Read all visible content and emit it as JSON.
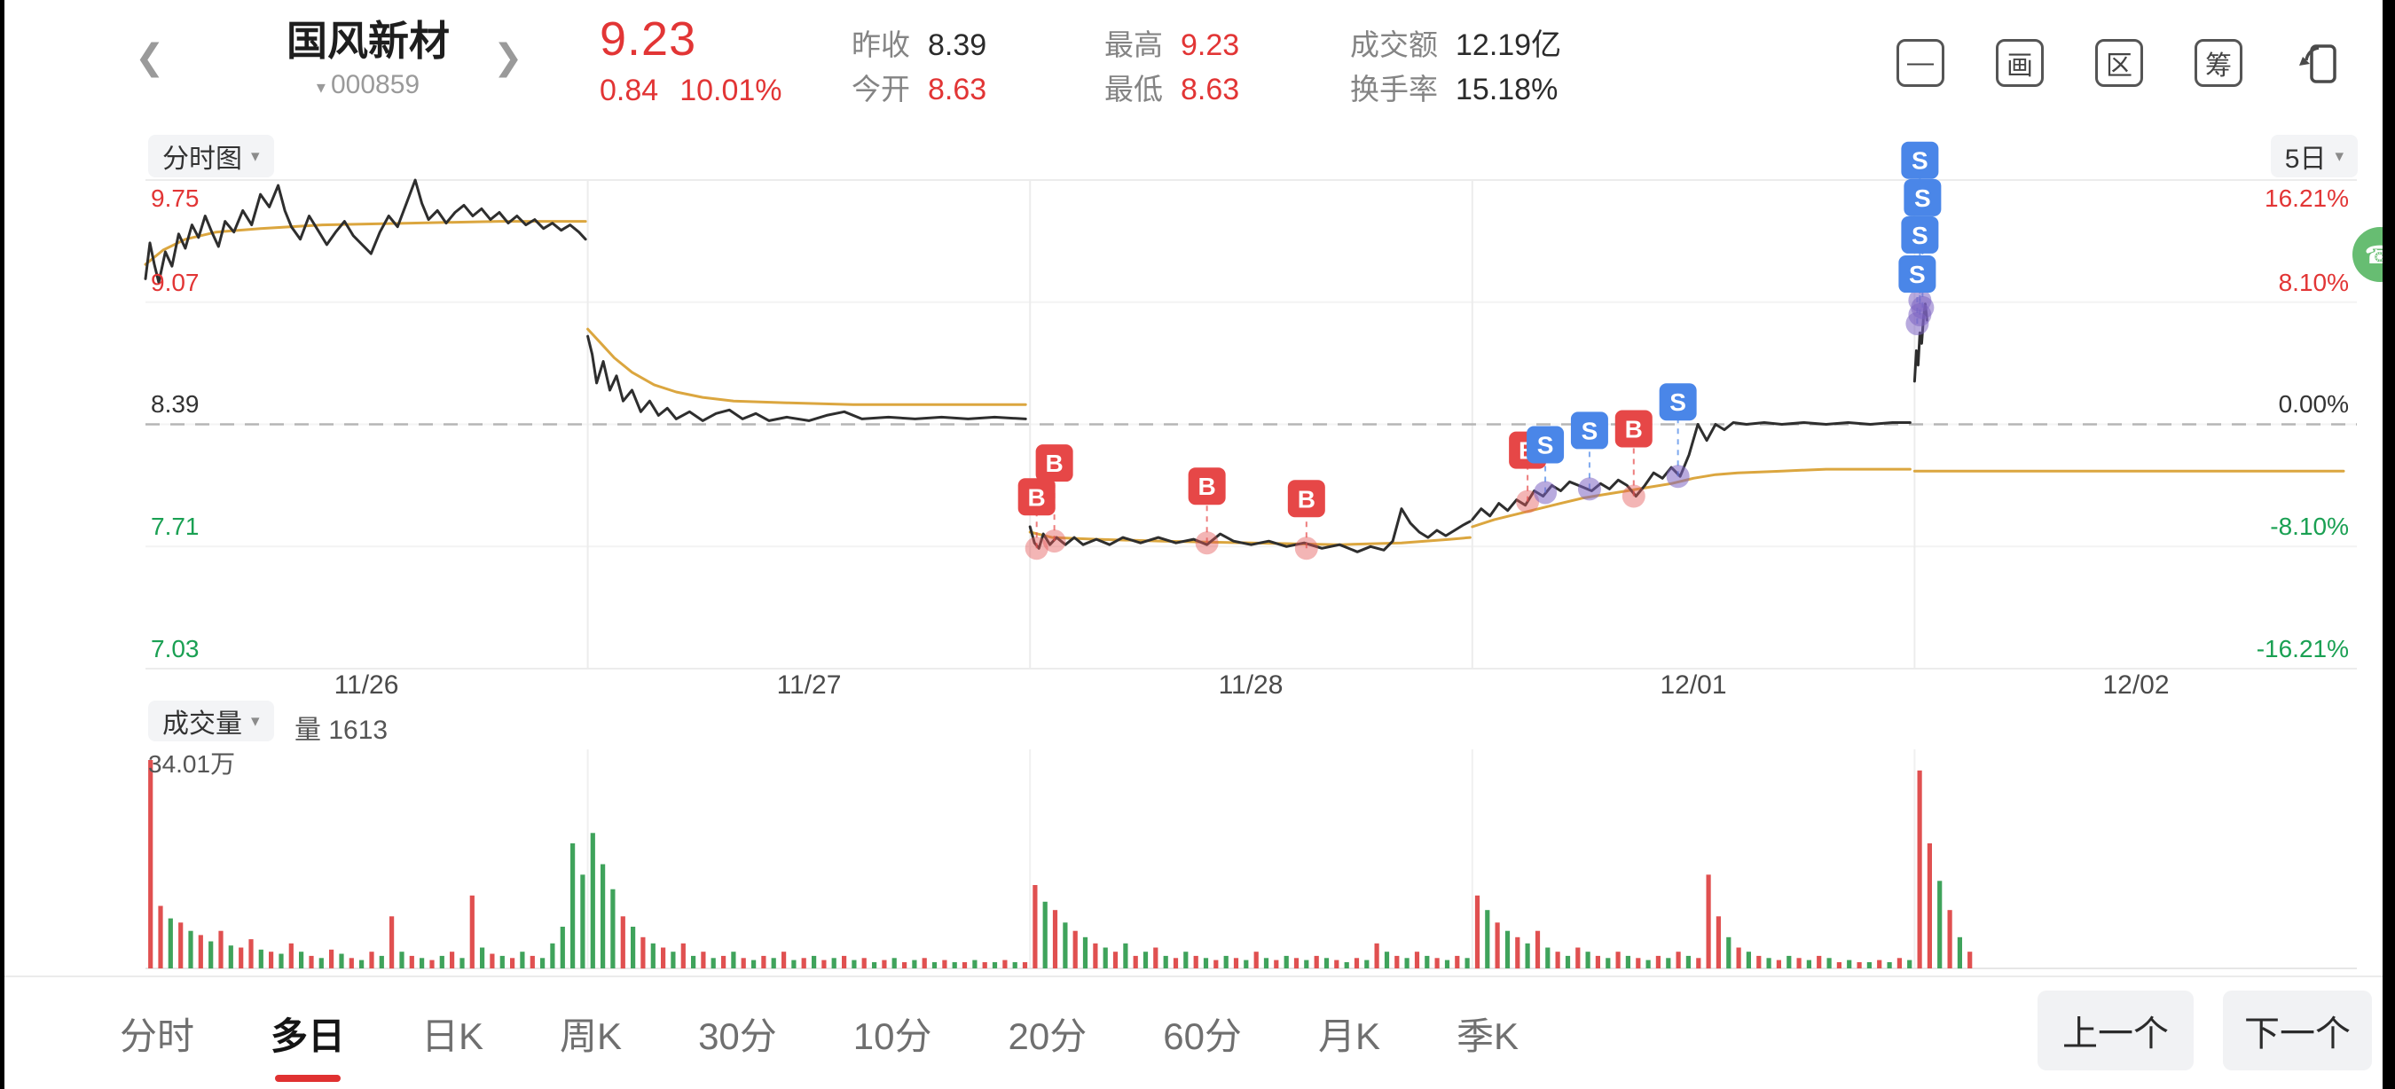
{
  "colors": {
    "up": "#e23535",
    "down": "#1aa053",
    "accent": "#e03131"
  },
  "header": {
    "stock_name": "国风新材",
    "stock_code": "000859",
    "price": "9.23",
    "change_amount": "0.84",
    "change_pct": "10.01%",
    "stats": [
      {
        "label": "昨收",
        "value": "8.39",
        "color": "#2b2b2b"
      },
      {
        "label": "今开",
        "value": "8.63",
        "color": "#e23535"
      },
      {
        "label": "最高",
        "value": "9.23",
        "color": "#e23535"
      },
      {
        "label": "最低",
        "value": "8.63",
        "color": "#e23535"
      },
      {
        "label": "成交额",
        "value": "12.19亿",
        "color": "#2b2b2b"
      },
      {
        "label": "换手率",
        "value": "15.18%",
        "color": "#2b2b2b"
      }
    ],
    "icons": [
      {
        "name": "minus-icon",
        "glyph": "—"
      },
      {
        "name": "draw-tool-icon",
        "glyph": "画"
      },
      {
        "name": "region-stat-icon",
        "glyph": "区"
      },
      {
        "name": "chip-distribution-icon",
        "glyph": "筹"
      },
      {
        "name": "rotate-screen-icon",
        "glyph": ""
      }
    ]
  },
  "chart_toolbar": {
    "chart_type": "分时图",
    "range": "5日"
  },
  "volume_toolbar": {
    "indicator": "成交量",
    "vol_label": "量",
    "vol_value": "1613",
    "max_label": "34.01万"
  },
  "tabs": {
    "items": [
      {
        "label": "分时",
        "active": false
      },
      {
        "label": "多日",
        "active": true
      },
      {
        "label": "日K",
        "active": false
      },
      {
        "label": "周K",
        "active": false
      },
      {
        "label": "30分",
        "active": false
      },
      {
        "label": "10分",
        "active": false
      },
      {
        "label": "20分",
        "active": false
      },
      {
        "label": "60分",
        "active": false
      },
      {
        "label": "月K",
        "active": false
      },
      {
        "label": "季K",
        "active": false
      }
    ],
    "prev": "上一个",
    "next": "下一个"
  },
  "chart_data": {
    "type": "line",
    "title": "5日分时图",
    "ylim": [
      7.03,
      9.75
    ],
    "prev_close": 8.39,
    "price_levels": [
      {
        "price": 9.75,
        "text": "9.75",
        "color": "#e23535"
      },
      {
        "price": 9.07,
        "text": "9.07",
        "color": "#e23535"
      },
      {
        "price": 8.39,
        "text": "8.39",
        "color": "#333333"
      },
      {
        "price": 7.71,
        "text": "7.71",
        "color": "#1aa053"
      },
      {
        "price": 7.03,
        "text": "7.03",
        "color": "#1aa053"
      }
    ],
    "pct_levels": [
      {
        "text": "16.21%",
        "color": "#e23535"
      },
      {
        "text": "8.10%",
        "color": "#e23535"
      },
      {
        "text": "0.00%",
        "color": "#333333"
      },
      {
        "text": "-8.10%",
        "color": "#1aa053"
      },
      {
        "text": "-16.21%",
        "color": "#1aa053"
      }
    ],
    "days": [
      "11/26",
      "11/27",
      "11/28",
      "12/01",
      "12/02"
    ],
    "colors": {
      "price_line": "#2e2e2e",
      "avg_line": "#dba63f",
      "vol_up": "#e05050",
      "vol_down": "#3fa35b",
      "buy": "#e64747",
      "sell": "#4a86e8",
      "grid": "#ececec",
      "dash": "#b5b5b5"
    },
    "price_segments": [
      [
        [
          0,
          9.2
        ],
        [
          0.01,
          9.4
        ],
        [
          0.02,
          9.28
        ],
        [
          0.03,
          9.18
        ],
        [
          0.045,
          9.35
        ],
        [
          0.06,
          9.27
        ],
        [
          0.075,
          9.45
        ],
        [
          0.09,
          9.37
        ],
        [
          0.105,
          9.5
        ],
        [
          0.12,
          9.43
        ],
        [
          0.135,
          9.55
        ],
        [
          0.15,
          9.46
        ],
        [
          0.165,
          9.38
        ],
        [
          0.18,
          9.52
        ],
        [
          0.2,
          9.46
        ],
        [
          0.22,
          9.58
        ],
        [
          0.24,
          9.5
        ],
        [
          0.26,
          9.67
        ],
        [
          0.28,
          9.6
        ],
        [
          0.3,
          9.72
        ],
        [
          0.315,
          9.58
        ],
        [
          0.33,
          9.49
        ],
        [
          0.35,
          9.42
        ],
        [
          0.37,
          9.55
        ],
        [
          0.39,
          9.47
        ],
        [
          0.41,
          9.39
        ],
        [
          0.43,
          9.46
        ],
        [
          0.45,
          9.52
        ],
        [
          0.47,
          9.44
        ],
        [
          0.49,
          9.39
        ],
        [
          0.51,
          9.34
        ],
        [
          0.53,
          9.46
        ],
        [
          0.55,
          9.55
        ],
        [
          0.57,
          9.49
        ],
        [
          0.59,
          9.62
        ],
        [
          0.61,
          9.75
        ],
        [
          0.625,
          9.62
        ],
        [
          0.64,
          9.53
        ],
        [
          0.66,
          9.58
        ],
        [
          0.68,
          9.51
        ],
        [
          0.7,
          9.57
        ],
        [
          0.72,
          9.61
        ],
        [
          0.74,
          9.55
        ],
        [
          0.76,
          9.59
        ],
        [
          0.78,
          9.53
        ],
        [
          0.8,
          9.57
        ],
        [
          0.82,
          9.51
        ],
        [
          0.84,
          9.55
        ],
        [
          0.86,
          9.5
        ],
        [
          0.88,
          9.53
        ],
        [
          0.9,
          9.48
        ],
        [
          0.92,
          9.51
        ],
        [
          0.94,
          9.47
        ],
        [
          0.96,
          9.5
        ],
        [
          0.98,
          9.46
        ],
        [
          0.995,
          9.42
        ]
      ],
      [
        [
          1.0,
          8.88
        ],
        [
          1.01,
          8.78
        ],
        [
          1.02,
          8.62
        ],
        [
          1.035,
          8.74
        ],
        [
          1.05,
          8.58
        ],
        [
          1.065,
          8.66
        ],
        [
          1.08,
          8.52
        ],
        [
          1.1,
          8.58
        ],
        [
          1.12,
          8.46
        ],
        [
          1.14,
          8.52
        ],
        [
          1.16,
          8.44
        ],
        [
          1.18,
          8.48
        ],
        [
          1.2,
          8.42
        ],
        [
          1.23,
          8.46
        ],
        [
          1.26,
          8.41
        ],
        [
          1.29,
          8.45
        ],
        [
          1.32,
          8.47
        ],
        [
          1.35,
          8.42
        ],
        [
          1.38,
          8.45
        ],
        [
          1.41,
          8.41
        ],
        [
          1.45,
          8.43
        ],
        [
          1.5,
          8.41
        ],
        [
          1.54,
          8.44
        ],
        [
          1.58,
          8.46
        ],
        [
          1.62,
          8.42
        ],
        [
          1.68,
          8.43
        ],
        [
          1.74,
          8.42
        ],
        [
          1.8,
          8.43
        ],
        [
          1.86,
          8.42
        ],
        [
          1.92,
          8.43
        ],
        [
          1.99,
          8.42
        ]
      ],
      [
        [
          2.0,
          7.82
        ],
        [
          2.01,
          7.73
        ],
        [
          2.02,
          7.7
        ],
        [
          2.03,
          7.78
        ],
        [
          2.045,
          7.72
        ],
        [
          2.06,
          7.76
        ],
        [
          2.08,
          7.72
        ],
        [
          2.1,
          7.76
        ],
        [
          2.12,
          7.72
        ],
        [
          2.15,
          7.75
        ],
        [
          2.18,
          7.72
        ],
        [
          2.21,
          7.76
        ],
        [
          2.25,
          7.73
        ],
        [
          2.29,
          7.76
        ],
        [
          2.33,
          7.73
        ],
        [
          2.37,
          7.75
        ],
        [
          2.4,
          7.72
        ],
        [
          2.43,
          7.78
        ],
        [
          2.46,
          7.74
        ],
        [
          2.5,
          7.72
        ],
        [
          2.54,
          7.74
        ],
        [
          2.58,
          7.71
        ],
        [
          2.62,
          7.73
        ],
        [
          2.66,
          7.7
        ],
        [
          2.7,
          7.72
        ],
        [
          2.74,
          7.68
        ],
        [
          2.77,
          7.71
        ],
        [
          2.8,
          7.69
        ],
        [
          2.82,
          7.74
        ],
        [
          2.84,
          7.92
        ],
        [
          2.86,
          7.84
        ],
        [
          2.88,
          7.79
        ],
        [
          2.9,
          7.76
        ],
        [
          2.92,
          7.8
        ],
        [
          2.94,
          7.77
        ],
        [
          2.96,
          7.8
        ],
        [
          2.98,
          7.83
        ],
        [
          2.995,
          7.85
        ]
      ],
      [
        [
          3.0,
          7.86
        ],
        [
          3.02,
          7.92
        ],
        [
          3.04,
          7.88
        ],
        [
          3.06,
          7.95
        ],
        [
          3.08,
          7.91
        ],
        [
          3.1,
          7.97
        ],
        [
          3.12,
          7.94
        ],
        [
          3.14,
          8.02
        ],
        [
          3.16,
          7.99
        ],
        [
          3.18,
          8.05
        ],
        [
          3.2,
          8.02
        ],
        [
          3.22,
          8.07
        ],
        [
          3.25,
          8.04
        ],
        [
          3.27,
          8.02
        ],
        [
          3.29,
          8.06
        ],
        [
          3.31,
          8.03
        ],
        [
          3.33,
          8.08
        ],
        [
          3.35,
          8.05
        ],
        [
          3.37,
          7.99
        ],
        [
          3.39,
          8.05
        ],
        [
          3.41,
          8.12
        ],
        [
          3.43,
          8.09
        ],
        [
          3.45,
          8.15
        ],
        [
          3.47,
          8.1
        ],
        [
          3.49,
          8.22
        ],
        [
          3.51,
          8.39
        ],
        [
          3.53,
          8.3
        ],
        [
          3.55,
          8.39
        ],
        [
          3.57,
          8.36
        ],
        [
          3.59,
          8.4
        ],
        [
          3.62,
          8.39
        ],
        [
          3.66,
          8.4
        ],
        [
          3.7,
          8.39
        ],
        [
          3.75,
          8.4
        ],
        [
          3.8,
          8.39
        ],
        [
          3.85,
          8.4
        ],
        [
          3.9,
          8.39
        ],
        [
          3.95,
          8.4
        ],
        [
          3.99,
          8.4
        ]
      ],
      [
        [
          4.0,
          8.63
        ],
        [
          4.004,
          8.8
        ],
        [
          4.008,
          8.72
        ],
        [
          4.012,
          8.9
        ],
        [
          4.016,
          8.84
        ],
        [
          4.02,
          8.98
        ],
        [
          4.024,
          9.06
        ],
        [
          4.028,
          8.97
        ]
      ]
    ],
    "avg_segments": [
      [
        [
          0,
          9.28
        ],
        [
          0.04,
          9.36
        ],
        [
          0.09,
          9.42
        ],
        [
          0.16,
          9.46
        ],
        [
          0.26,
          9.48
        ],
        [
          0.4,
          9.5
        ],
        [
          0.6,
          9.51
        ],
        [
          0.8,
          9.52
        ],
        [
          0.995,
          9.52
        ]
      ],
      [
        [
          1.0,
          8.92
        ],
        [
          1.03,
          8.84
        ],
        [
          1.06,
          8.76
        ],
        [
          1.1,
          8.68
        ],
        [
          1.15,
          8.61
        ],
        [
          1.2,
          8.57
        ],
        [
          1.26,
          8.54
        ],
        [
          1.33,
          8.52
        ],
        [
          1.45,
          8.51
        ],
        [
          1.6,
          8.5
        ],
        [
          1.99,
          8.5
        ]
      ],
      [
        [
          2.0,
          7.79
        ],
        [
          2.05,
          7.76
        ],
        [
          2.15,
          7.75
        ],
        [
          2.3,
          7.74
        ],
        [
          2.5,
          7.73
        ],
        [
          2.7,
          7.72
        ],
        [
          2.84,
          7.73
        ],
        [
          2.95,
          7.75
        ],
        [
          2.995,
          7.76
        ]
      ],
      [
        [
          3.0,
          7.82
        ],
        [
          3.05,
          7.86
        ],
        [
          3.1,
          7.89
        ],
        [
          3.15,
          7.92
        ],
        [
          3.2,
          7.95
        ],
        [
          3.25,
          7.98
        ],
        [
          3.3,
          8.0
        ],
        [
          3.35,
          8.02
        ],
        [
          3.4,
          8.04
        ],
        [
          3.45,
          8.06
        ],
        [
          3.5,
          8.09
        ],
        [
          3.55,
          8.11
        ],
        [
          3.6,
          8.12
        ],
        [
          3.7,
          8.13
        ],
        [
          3.8,
          8.14
        ],
        [
          3.99,
          8.14
        ]
      ],
      [
        [
          4.0,
          8.13
        ],
        [
          4.97,
          8.13
        ]
      ]
    ],
    "markers": [
      {
        "t": 2.015,
        "p": 7.7,
        "label": "B",
        "dy": 58
      },
      {
        "t": 2.055,
        "p": 7.74,
        "label": "B",
        "dy": 88
      },
      {
        "t": 2.4,
        "p": 7.73,
        "label": "B",
        "dy": 64
      },
      {
        "t": 2.625,
        "p": 7.7,
        "label": "B",
        "dy": 56
      },
      {
        "t": 3.125,
        "p": 7.96,
        "label": "B",
        "dy": 58
      },
      {
        "t": 3.165,
        "p": 8.01,
        "label": "S",
        "dy": 54
      },
      {
        "t": 3.265,
        "p": 8.03,
        "label": "S",
        "dy": 66
      },
      {
        "t": 3.365,
        "p": 7.99,
        "label": "B",
        "dy": 76
      },
      {
        "t": 3.465,
        "p": 8.1,
        "label": "S",
        "dy": 84
      },
      {
        "t": 4.006,
        "p": 8.95,
        "label": "S",
        "dy": 56
      },
      {
        "t": 4.012,
        "p": 9.0,
        "label": "S",
        "dy": 90
      },
      {
        "t": 4.018,
        "p": 9.04,
        "label": "S",
        "dy": 124
      },
      {
        "t": 4.012,
        "p": 9.08,
        "label": "S",
        "dy": 158
      }
    ],
    "volume": {
      "max_value_label": "34.01万",
      "days": [
        [
          100,
          30,
          -24,
          22,
          -18,
          16,
          -13,
          18,
          -11,
          10,
          14,
          -9,
          8,
          -7,
          12,
          -8,
          6,
          -5,
          9,
          -7,
          5,
          -4,
          8,
          -6,
          25,
          -8,
          6,
          -5,
          4,
          -6,
          8,
          -5,
          35,
          -10,
          7,
          -6,
          5,
          -8,
          6,
          -5,
          -12,
          -20,
          -60,
          -45
        ],
        [
          -65,
          -50,
          -38,
          25,
          -20,
          15,
          -12,
          10,
          -8,
          12,
          -6,
          8,
          -5,
          6,
          -8,
          5,
          -4,
          6,
          -5,
          8,
          -4,
          5,
          -6,
          4,
          -5,
          6,
          -4,
          5,
          -3,
          4,
          -5,
          3,
          -4,
          5,
          -3,
          4,
          -3,
          3,
          -4,
          3,
          -3,
          4,
          -3,
          3
        ],
        [
          40,
          -32,
          28,
          -22,
          18,
          -15,
          12,
          -10,
          8,
          -12,
          6,
          -8,
          10,
          -6,
          5,
          -8,
          6,
          -5,
          4,
          -6,
          5,
          -4,
          8,
          -5,
          4,
          -6,
          5,
          -4,
          6,
          -5,
          4,
          -3,
          5,
          -4,
          12,
          -8,
          6,
          -5,
          8,
          -6,
          5,
          -4,
          6,
          -5
        ],
        [
          35,
          -28,
          22,
          -18,
          15,
          -12,
          18,
          -10,
          8,
          -6,
          10,
          -8,
          6,
          -5,
          8,
          -6,
          5,
          -4,
          6,
          -5,
          8,
          -6,
          5,
          45,
          25,
          -15,
          10,
          -8,
          6,
          -5,
          4,
          -6,
          5,
          -4,
          6,
          -5,
          3,
          -4,
          3,
          -3,
          4,
          -3,
          5,
          -4
        ],
        [
          95,
          60,
          -42,
          28,
          -15,
          8
        ]
      ]
    }
  }
}
